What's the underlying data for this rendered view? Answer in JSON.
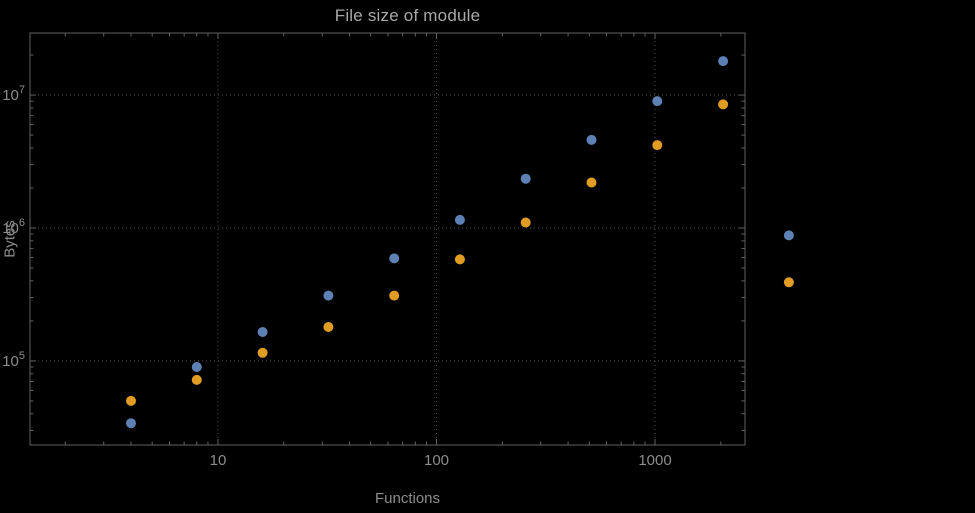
{
  "chart_data": {
    "type": "scatter",
    "title": "File size of module",
    "xlabel": "Functions",
    "ylabel": "Bytes",
    "x_scale": "log",
    "y_scale": "log",
    "grid": "dotted",
    "legend": "none",
    "xlim": [
      1.38,
      2580
    ],
    "ylim": [
      23300,
      29300000
    ],
    "x_ticks": [
      10,
      100,
      1000
    ],
    "x_tick_labels": [
      "10",
      "100",
      "1000"
    ],
    "y_ticks": [
      100000,
      1000000,
      10000000
    ],
    "y_tick_base": "10",
    "y_tick_exponents": [
      "5",
      "6",
      "7"
    ],
    "colors": {
      "background": "#000000",
      "frame": "#606060",
      "grid": "#4d4d4d",
      "tick_label": "#8c8c8c",
      "title": "#a8a8a8",
      "series1": "#5e81b5",
      "series2": "#e19c24"
    },
    "series": [
      {
        "name": "series1",
        "color": "#5e81b5",
        "x": [
          4,
          8,
          16,
          32,
          64,
          128,
          256,
          512,
          1024,
          2048,
          4096
        ],
        "y": [
          34000,
          90000,
          165000,
          310000,
          590000,
          1150000,
          2350000,
          4600000,
          9000000,
          18000000,
          880000
        ]
      },
      {
        "name": "series2",
        "color": "#e19c24",
        "x": [
          4,
          8,
          16,
          32,
          64,
          128,
          256,
          512,
          1024,
          2048,
          4096
        ],
        "y": [
          50000,
          72000,
          115000,
          180000,
          310000,
          580000,
          1100000,
          2200000,
          4200000,
          8500000,
          390000
        ]
      }
    ]
  }
}
